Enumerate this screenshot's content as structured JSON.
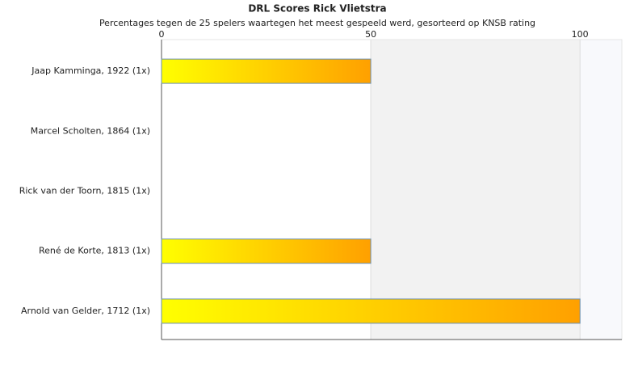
{
  "chart_data": {
    "type": "bar",
    "orientation": "horizontal",
    "title": "DRL Scores Rick Vlietstra",
    "subtitle": "Percentages tegen de 25 spelers waartegen het meest gespeeld werd, gesorteerd op KNSB rating",
    "categories": [
      "Jaap Kamminga, 1922 (1x)",
      "Marcel Scholten, 1864 (1x)",
      "Rick van der Toorn, 1815 (1x)",
      "René de Korte, 1813 (1x)",
      "Arnold van Gelder, 1712 (1x)"
    ],
    "values": [
      50,
      0,
      0,
      50,
      100
    ],
    "colors": [
      "#ffff00",
      "#ffa000"
    ],
    "border_color": "#6a8fb0",
    "xlim": [
      0,
      110
    ],
    "xticks": [
      0,
      50,
      100
    ],
    "grid": true
  }
}
